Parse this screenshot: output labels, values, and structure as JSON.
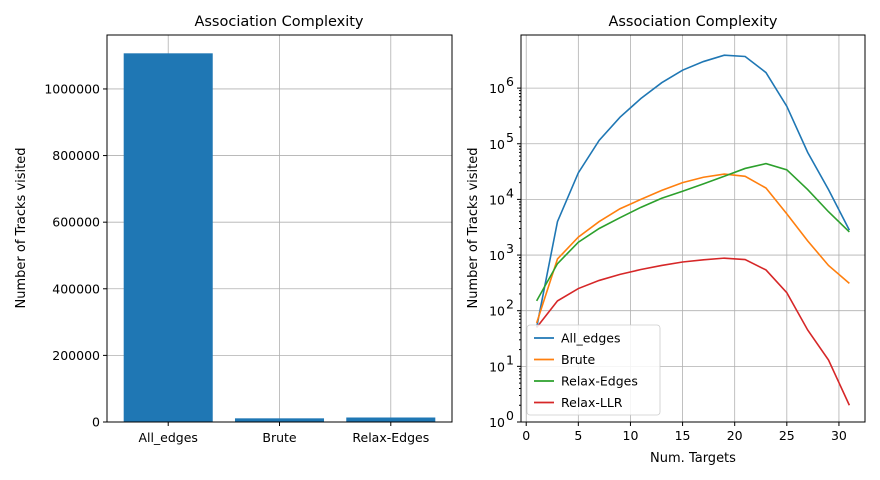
{
  "chart_data": [
    {
      "type": "bar",
      "title": "Association Complexity",
      "xlabel": "",
      "ylabel": "Number of Tracks visited",
      "categories": [
        "All_edges",
        "Brute",
        "Relax-Edges"
      ],
      "values": [
        1107000,
        11000,
        13500
      ],
      "ylim": [
        0,
        1162000
      ],
      "yticks": [
        0,
        200000,
        400000,
        600000,
        800000,
        1000000
      ],
      "ytick_labels": [
        "0",
        "200000",
        "400000",
        "600000",
        "800000",
        "1000000"
      ],
      "grid": true,
      "color": "#1f77b4"
    },
    {
      "type": "line",
      "title": "Association Complexity",
      "xlabel": "Num. Targets",
      "ylabel": "Number of Tracks visited",
      "yscale": "log",
      "xlim": [
        -0.5,
        32.5
      ],
      "ylim": [
        1,
        9000000
      ],
      "xticks": [
        0,
        5,
        10,
        15,
        20,
        25,
        30
      ],
      "xtick_labels": [
        "0",
        "5",
        "10",
        "15",
        "20",
        "25",
        "30"
      ],
      "ytick_exponents": [
        "0",
        "1",
        "2",
        "3",
        "4",
        "5",
        "6"
      ],
      "ytick_base": "10",
      "grid": true,
      "legend_position": "lower-left",
      "x": [
        1,
        3,
        5,
        7,
        9,
        11,
        13,
        15,
        17,
        19,
        21,
        23,
        25,
        27,
        29,
        31
      ],
      "series": [
        {
          "name": "All_edges",
          "color": "#1f77b4",
          "values": [
            50,
            4000,
            30000,
            115000,
            300000,
            650000,
            1250000,
            2100000,
            3000000,
            3900000,
            3700000,
            1900000,
            470000,
            70000,
            15000,
            2800
          ]
        },
        {
          "name": "Brute",
          "color": "#ff7f0e",
          "values": [
            60,
            850,
            2100,
            4000,
            6800,
            10000,
            14500,
            20000,
            25000,
            28500,
            26000,
            16000,
            5500,
            1800,
            650,
            310
          ]
        },
        {
          "name": "Relax-Edges",
          "color": "#2ca02c",
          "values": [
            150,
            700,
            1700,
            3000,
            4700,
            7200,
            10500,
            14000,
            19000,
            26000,
            36000,
            44000,
            34000,
            15000,
            6000,
            2600
          ]
        },
        {
          "name": "Relax-LLR",
          "color": "#d62728",
          "values": [
            50,
            150,
            250,
            350,
            450,
            550,
            650,
            750,
            820,
            880,
            830,
            540,
            210,
            45,
            13,
            2
          ]
        }
      ]
    }
  ]
}
